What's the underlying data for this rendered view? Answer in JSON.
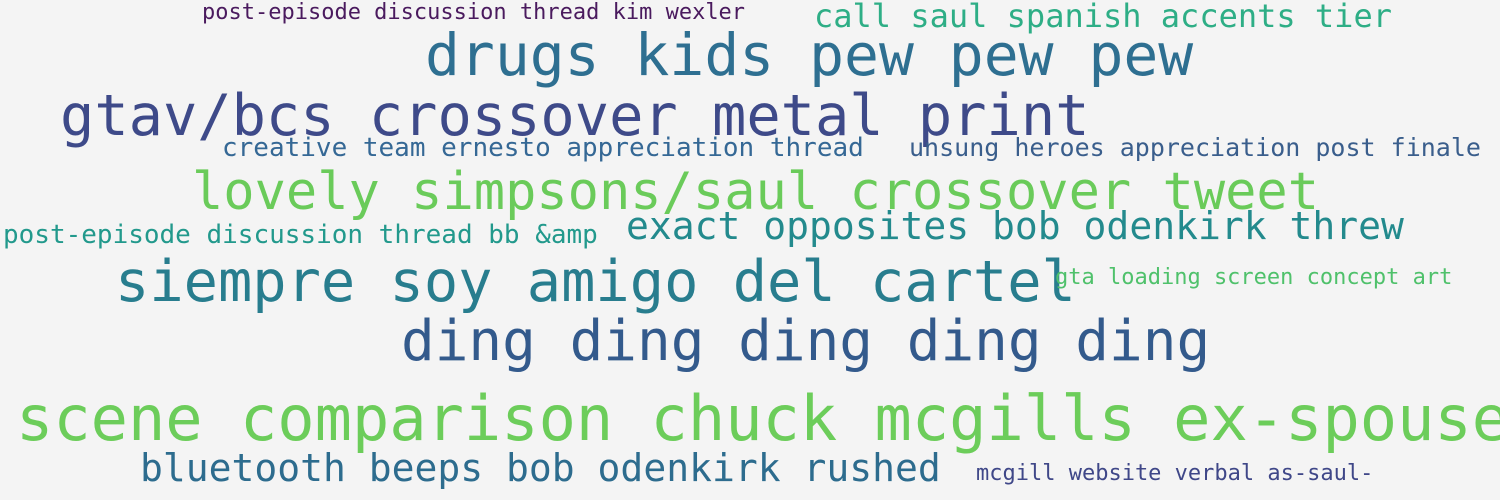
{
  "cloud": {
    "phrases": [
      {
        "text": "post-episode discussion thread kim wexler",
        "color": "#4a1a5e"
      },
      {
        "text": "call saul spanish accents tier",
        "color": "#2eae86"
      },
      {
        "text": "drugs kids pew pew pew",
        "color": "#2e6f91"
      },
      {
        "text": "gtav/bcs crossover metal print",
        "color": "#3e4a89"
      },
      {
        "text": "creative team ernesto appreciation thread",
        "color": "#356895"
      },
      {
        "text": "unsung heroes appreciation post finale",
        "color": "#3a5e8c"
      },
      {
        "text": "lovely simpsons/saul crossover tweet",
        "color": "#6acb5a"
      },
      {
        "text": "post-episode discussion thread bb &amp",
        "color": "#22998c"
      },
      {
        "text": "exact opposites bob odenkirk threw",
        "color": "#238a8d"
      },
      {
        "text": "siempre soy amigo del cartel",
        "color": "#287d8e"
      },
      {
        "text": "gta loading screen concept art",
        "color": "#4fc16b"
      },
      {
        "text": "ding ding ding ding ding",
        "color": "#335a8c"
      },
      {
        "text": "scene comparison chuck mcgills ex-spouse",
        "color": "#6ccd5a"
      },
      {
        "text": "bluetooth beeps bob odenkirk rushed",
        "color": "#2d6c8e"
      },
      {
        "text": "mcgill website verbal as-saul-",
        "color": "#3f4788"
      }
    ]
  }
}
